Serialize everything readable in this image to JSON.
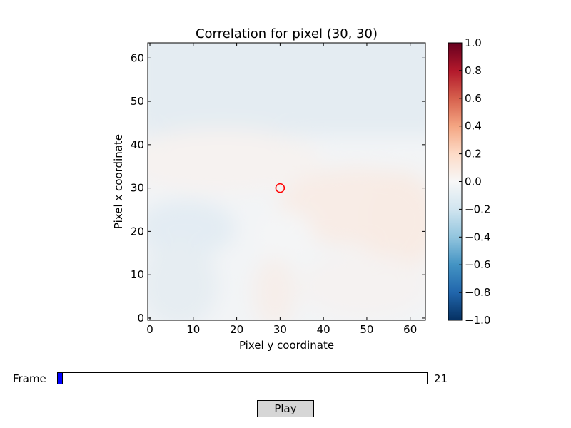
{
  "chart_data": {
    "type": "heatmap",
    "title": "Correlation for pixel (30, 30)",
    "xlabel": "Pixel y coordinate",
    "ylabel": "Pixel x coordinate",
    "xlim": [
      -0.5,
      63.5
    ],
    "ylim": [
      -0.5,
      63.5
    ],
    "xticks": [
      0,
      10,
      20,
      30,
      40,
      50,
      60
    ],
    "yticks": [
      0,
      10,
      20,
      30,
      40,
      50,
      60
    ],
    "colormap": "RdBu_r",
    "colorbar": {
      "range": [
        -1.0,
        1.0
      ],
      "ticks": [
        "1.0",
        "0.8",
        "0.6",
        "0.4",
        "0.2",
        "0.0",
        "−0.2",
        "−0.4",
        "−0.6",
        "−0.8",
        "−1.0"
      ],
      "tick_values": [
        1.0,
        0.8,
        0.6,
        0.4,
        0.2,
        0.0,
        -0.2,
        -0.4,
        -0.6,
        -0.8,
        -1.0
      ]
    },
    "marker": {
      "x": 30,
      "y": 30,
      "shape": "circle",
      "color": "#ff0000"
    },
    "grid": false
  },
  "controls": {
    "slider_label": "Frame",
    "slider_value": "21",
    "slider_fraction": 0.013,
    "slider_fill_color": "#0000ff",
    "play_label": "Play"
  }
}
